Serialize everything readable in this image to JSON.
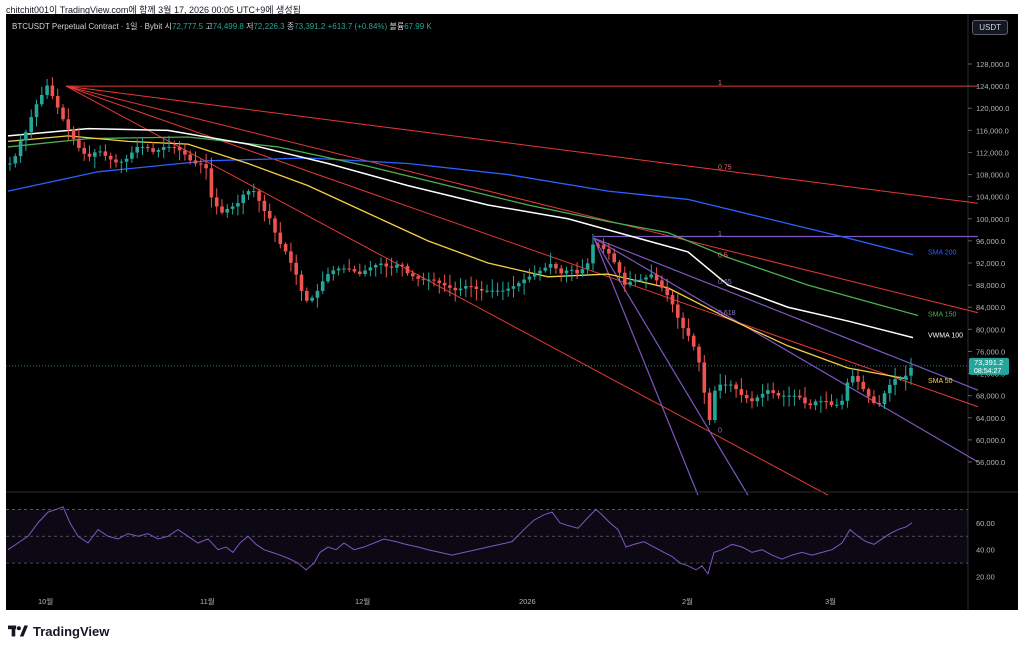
{
  "caption": "chitchit001이 TradingView.com에 함께 3월 17, 2026 00:05 UTC+9에 생성됨",
  "header": {
    "symbol": "BTCUSDT Perpetual Contract · 1일 · Bybit",
    "o_label": "시",
    "o_value": "72,777.5",
    "h_label": "고",
    "h_value": "74,499.8",
    "l_label": "저",
    "l_value": "72,226.3",
    "c_label": "종",
    "c_value": "73,391.2",
    "change": "+613.7 (+0.84%)",
    "vol_label": "볼륨",
    "vol_value": "67.99 K",
    "currency": "USDT"
  },
  "footer": {
    "brand": "TradingView"
  },
  "colors": {
    "up": "#26a69a",
    "down": "#ef5350",
    "sma50": "#f5d142",
    "sma150": "#4caf50",
    "sma200": "#2962ff",
    "vwma": "#ffffff",
    "fan": "#e53935",
    "fib": "#7e57c2",
    "rsi": "#7e57c2"
  },
  "chart_data": {
    "type": "candlestick",
    "price_axis": {
      "ticks": [
        128000,
        124000,
        120000,
        116000,
        112000,
        108000,
        104000,
        100000,
        96000,
        92000,
        88000,
        84000,
        80000,
        76000,
        72000,
        68000,
        64000,
        60000,
        56000
      ],
      "tick_labels": [
        "128,000.0",
        "124,000.0",
        "120,000.0",
        "116,000.0",
        "112,000.0",
        "108,000.0",
        "104,000.0",
        "100,000.0",
        "96,000.0",
        "92,000.0",
        "88,000.0",
        "84,000.0",
        "80,000.0",
        "76,000.0",
        "72,000.0",
        "68,000.0",
        "64,000.0",
        "60,000.0",
        "56,000.0"
      ],
      "last_price_label": "73,391.2",
      "countdown": "08:54:27"
    },
    "time_axis": {
      "labels": [
        "10월",
        "11월",
        "12월",
        "2026",
        "2월",
        "3월"
      ]
    },
    "candle_path": [
      [
        0,
        110000
      ],
      [
        5,
        110000
      ],
      [
        12,
        114000
      ],
      [
        19,
        116000
      ],
      [
        26,
        120000
      ],
      [
        33,
        122000
      ],
      [
        38,
        124500
      ],
      [
        45,
        122000
      ],
      [
        55,
        118000
      ],
      [
        70,
        113000
      ],
      [
        80,
        111000
      ],
      [
        90,
        112500
      ],
      [
        100,
        111000
      ],
      [
        110,
        110000
      ],
      [
        120,
        111000
      ],
      [
        128,
        113000
      ],
      [
        138,
        113000
      ],
      [
        146,
        112000
      ],
      [
        156,
        113000
      ],
      [
        166,
        113000
      ],
      [
        175,
        112000
      ],
      [
        185,
        110000
      ],
      [
        192,
        110000
      ],
      [
        199,
        109000
      ],
      [
        203,
        104000
      ],
      [
        206,
        103000
      ],
      [
        213,
        101000
      ],
      [
        221,
        102000
      ],
      [
        229,
        102500
      ],
      [
        233,
        104000
      ],
      [
        239,
        105000
      ],
      [
        247,
        105000
      ],
      [
        254,
        102000
      ],
      [
        262,
        100000
      ],
      [
        270,
        96000
      ],
      [
        278,
        94000
      ],
      [
        288,
        90000
      ],
      [
        297,
        85000
      ],
      [
        307,
        86000
      ],
      [
        312,
        88000
      ],
      [
        320,
        90000
      ],
      [
        328,
        91000
      ],
      [
        340,
        91000
      ],
      [
        352,
        90000
      ],
      [
        360,
        91000
      ],
      [
        372,
        92000
      ],
      [
        382,
        91000
      ],
      [
        392,
        92000
      ],
      [
        400,
        90000
      ],
      [
        412,
        89000
      ],
      [
        424,
        89000
      ],
      [
        436,
        88000
      ],
      [
        448,
        87000
      ],
      [
        460,
        88000
      ],
      [
        472,
        87000
      ],
      [
        484,
        87000
      ],
      [
        496,
        87000
      ],
      [
        508,
        88000
      ],
      [
        516,
        89000
      ],
      [
        526,
        90000
      ],
      [
        536,
        91000
      ],
      [
        544,
        92000
      ],
      [
        552,
        90000
      ],
      [
        562,
        91000
      ],
      [
        570,
        90000
      ],
      [
        580,
        92000
      ],
      [
        586,
        96000
      ],
      [
        592,
        95000
      ],
      [
        600,
        94000
      ],
      [
        610,
        91000
      ],
      [
        616,
        88000
      ],
      [
        626,
        89000
      ],
      [
        634,
        89000
      ],
      [
        644,
        90000
      ],
      [
        652,
        88000
      ],
      [
        660,
        86000
      ],
      [
        666,
        84000
      ],
      [
        672,
        81000
      ],
      [
        680,
        79000
      ],
      [
        688,
        76000
      ],
      [
        694,
        72000
      ],
      [
        698,
        66000
      ],
      [
        700,
        62000
      ],
      [
        704,
        66000
      ],
      [
        708,
        70000
      ],
      [
        716,
        70000
      ],
      [
        724,
        70000
      ],
      [
        734,
        68000
      ],
      [
        744,
        67000
      ],
      [
        752,
        68000
      ],
      [
        760,
        69000
      ],
      [
        770,
        68000
      ],
      [
        780,
        68000
      ],
      [
        790,
        68000
      ],
      [
        800,
        66000
      ],
      [
        808,
        67000
      ],
      [
        818,
        67000
      ],
      [
        826,
        66000
      ],
      [
        834,
        67000
      ],
      [
        842,
        72000
      ],
      [
        848,
        71000
      ],
      [
        856,
        69000
      ],
      [
        864,
        67000
      ],
      [
        870,
        66000
      ],
      [
        878,
        69000
      ],
      [
        886,
        71000
      ],
      [
        894,
        71000
      ],
      [
        900,
        72000
      ],
      [
        904,
        73391
      ]
    ],
    "sma50": [
      [
        0,
        114000
      ],
      [
        60,
        115000
      ],
      [
        120,
        114000
      ],
      [
        180,
        113500
      ],
      [
        240,
        110000
      ],
      [
        300,
        106000
      ],
      [
        360,
        101000
      ],
      [
        420,
        96000
      ],
      [
        480,
        92000
      ],
      [
        540,
        89500
      ],
      [
        600,
        90000
      ],
      [
        660,
        87500
      ],
      [
        720,
        82000
      ],
      [
        780,
        77000
      ],
      [
        840,
        73000
      ],
      [
        900,
        71000
      ]
    ],
    "sma150": [
      [
        0,
        113000
      ],
      [
        80,
        114500
      ],
      [
        180,
        114800
      ],
      [
        270,
        113000
      ],
      [
        360,
        109500
      ],
      [
        440,
        106000
      ],
      [
        520,
        102500
      ],
      [
        600,
        99500
      ],
      [
        660,
        97500
      ],
      [
        720,
        93000
      ],
      [
        800,
        88000
      ],
      [
        860,
        85000
      ],
      [
        910,
        82500
      ]
    ],
    "sma200": [
      [
        0,
        105000
      ],
      [
        90,
        108500
      ],
      [
        200,
        110500
      ],
      [
        300,
        111000
      ],
      [
        400,
        110000
      ],
      [
        500,
        108000
      ],
      [
        600,
        105000
      ],
      [
        680,
        103500
      ],
      [
        760,
        100000
      ],
      [
        840,
        96500
      ],
      [
        905,
        93500
      ]
    ],
    "vwma100": [
      [
        0,
        115000
      ],
      [
        80,
        116300
      ],
      [
        160,
        116000
      ],
      [
        240,
        113500
      ],
      [
        320,
        110000
      ],
      [
        400,
        106000
      ],
      [
        480,
        102500
      ],
      [
        560,
        100000
      ],
      [
        620,
        97000
      ],
      [
        680,
        94000
      ],
      [
        720,
        88000
      ],
      [
        780,
        84000
      ],
      [
        840,
        81500
      ],
      [
        905,
        78500
      ]
    ],
    "rsi_path": [
      [
        0,
        40
      ],
      [
        10,
        45
      ],
      [
        20,
        50
      ],
      [
        30,
        60
      ],
      [
        40,
        68
      ],
      [
        48,
        70
      ],
      [
        55,
        72
      ],
      [
        62,
        60
      ],
      [
        70,
        50
      ],
      [
        80,
        45
      ],
      [
        90,
        55
      ],
      [
        100,
        50
      ],
      [
        110,
        48
      ],
      [
        120,
        52
      ],
      [
        130,
        50
      ],
      [
        140,
        52
      ],
      [
        150,
        48
      ],
      [
        160,
        50
      ],
      [
        170,
        55
      ],
      [
        180,
        50
      ],
      [
        190,
        45
      ],
      [
        200,
        48
      ],
      [
        210,
        40
      ],
      [
        218,
        42
      ],
      [
        225,
        38
      ],
      [
        232,
        45
      ],
      [
        240,
        50
      ],
      [
        248,
        44
      ],
      [
        256,
        40
      ],
      [
        264,
        38
      ],
      [
        272,
        36
      ],
      [
        282,
        33
      ],
      [
        290,
        30
      ],
      [
        298,
        25
      ],
      [
        306,
        30
      ],
      [
        312,
        38
      ],
      [
        320,
        42
      ],
      [
        328,
        40
      ],
      [
        336,
        45
      ],
      [
        346,
        40
      ],
      [
        356,
        42
      ],
      [
        366,
        45
      ],
      [
        376,
        48
      ],
      [
        388,
        46
      ],
      [
        398,
        44
      ],
      [
        410,
        42
      ],
      [
        420,
        40
      ],
      [
        432,
        38
      ],
      [
        444,
        36
      ],
      [
        456,
        38
      ],
      [
        468,
        40
      ],
      [
        480,
        42
      ],
      [
        492,
        44
      ],
      [
        504,
        46
      ],
      [
        516,
        55
      ],
      [
        526,
        62
      ],
      [
        536,
        66
      ],
      [
        544,
        68
      ],
      [
        552,
        60
      ],
      [
        560,
        58
      ],
      [
        570,
        56
      ],
      [
        580,
        64
      ],
      [
        588,
        70
      ],
      [
        594,
        66
      ],
      [
        602,
        60
      ],
      [
        610,
        55
      ],
      [
        618,
        42
      ],
      [
        626,
        44
      ],
      [
        636,
        46
      ],
      [
        646,
        42
      ],
      [
        656,
        38
      ],
      [
        664,
        35
      ],
      [
        672,
        30
      ],
      [
        680,
        28
      ],
      [
        688,
        25
      ],
      [
        694,
        28
      ],
      [
        700,
        22
      ],
      [
        706,
        38
      ],
      [
        714,
        40
      ],
      [
        724,
        44
      ],
      [
        734,
        42
      ],
      [
        744,
        38
      ],
      [
        754,
        40
      ],
      [
        764,
        36
      ],
      [
        774,
        33
      ],
      [
        784,
        36
      ],
      [
        794,
        38
      ],
      [
        804,
        36
      ],
      [
        814,
        38
      ],
      [
        824,
        40
      ],
      [
        834,
        45
      ],
      [
        842,
        55
      ],
      [
        850,
        50
      ],
      [
        858,
        46
      ],
      [
        866,
        44
      ],
      [
        874,
        48
      ],
      [
        882,
        52
      ],
      [
        890,
        55
      ],
      [
        898,
        57
      ],
      [
        904,
        60
      ]
    ],
    "rsi_axis": {
      "ticks": [
        60,
        40,
        20
      ],
      "tick_labels": [
        "60.00",
        "40.00",
        "20.00"
      ]
    },
    "labels": {
      "sma200": "SMA 200",
      "sma150": "SMA 150",
      "vwma100": "VWMA 100",
      "sma50": "SMA 50",
      "fib_1_top": "1",
      "fib_075": "0.75",
      "fib_05": "0.5",
      "fib_1_mid": "1",
      "fib_065": "0.65",
      "fib_0618": "0.618",
      "fib_0": "0"
    }
  }
}
